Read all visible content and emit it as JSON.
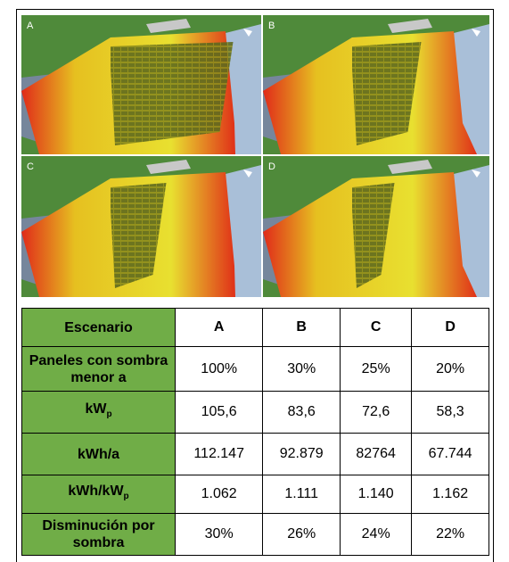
{
  "panels": [
    "A",
    "B",
    "C",
    "D"
  ],
  "table": {
    "header": [
      "Escenario",
      "A",
      "B",
      "C",
      "D"
    ],
    "rows": [
      {
        "label": [
          "Paneles con sombra menor a"
        ],
        "values": [
          "100%",
          "30%",
          "25%",
          "20%"
        ]
      },
      {
        "label": [
          "kW",
          "p"
        ],
        "values": [
          "105,6",
          "83,6",
          "72,6",
          "58,3"
        ]
      },
      {
        "label": [
          "kWh/a"
        ],
        "values": [
          "112.147",
          "92.879",
          "82764",
          "67.744"
        ]
      },
      {
        "label": [
          "kWh/kW",
          "p"
        ],
        "values": [
          "1.062",
          "1.111",
          "1.140",
          "1.162"
        ]
      },
      {
        "label": [
          "Disminución por sombra"
        ],
        "values": [
          "30%",
          "26%",
          "24%",
          "22%"
        ]
      }
    ]
  }
}
